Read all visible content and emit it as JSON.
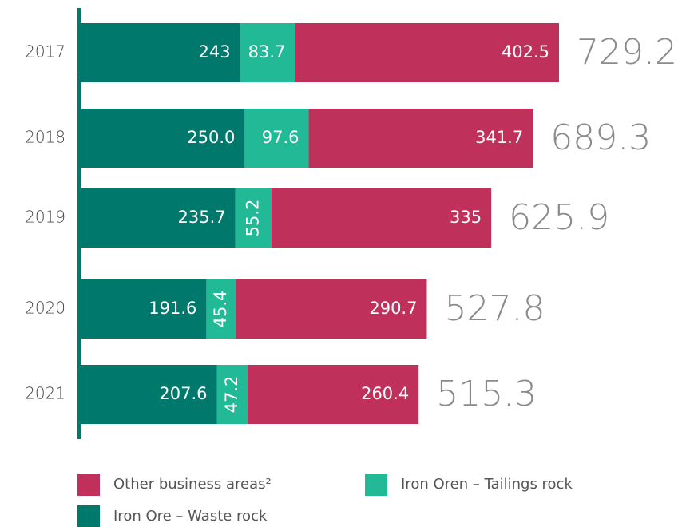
{
  "chart_data": {
    "type": "stacked-bar-horizontal",
    "categories": [
      "2017",
      "2018",
      "2019",
      "2020",
      "2021"
    ],
    "series": [
      {
        "name": "Iron Ore – Waste rock",
        "color": "#00786c",
        "values": [
          243,
          250.0,
          235.7,
          191.6,
          207.6
        ],
        "value_labels": [
          "243",
          "250.0",
          "235.7",
          "191.6",
          "207.6"
        ]
      },
      {
        "name": "Iron Oren – Tailings rock",
        "color": "#21b996",
        "values": [
          83.7,
          97.6,
          55.2,
          45.4,
          47.2
        ],
        "value_labels": [
          "83.7",
          "97.6",
          "55.2",
          "45.4",
          "47.2"
        ]
      },
      {
        "name": "Other business areas²",
        "color": "#bf315b",
        "values": [
          402.5,
          341.7,
          335,
          290.7,
          260.4
        ],
        "value_labels": [
          "402.5",
          "341.7",
          "335",
          "290.7",
          "260.4"
        ]
      }
    ],
    "totals": [
      729.2,
      689.3,
      625.9,
      527.8,
      515.3
    ],
    "legend_order": [
      2,
      1,
      0
    ]
  }
}
